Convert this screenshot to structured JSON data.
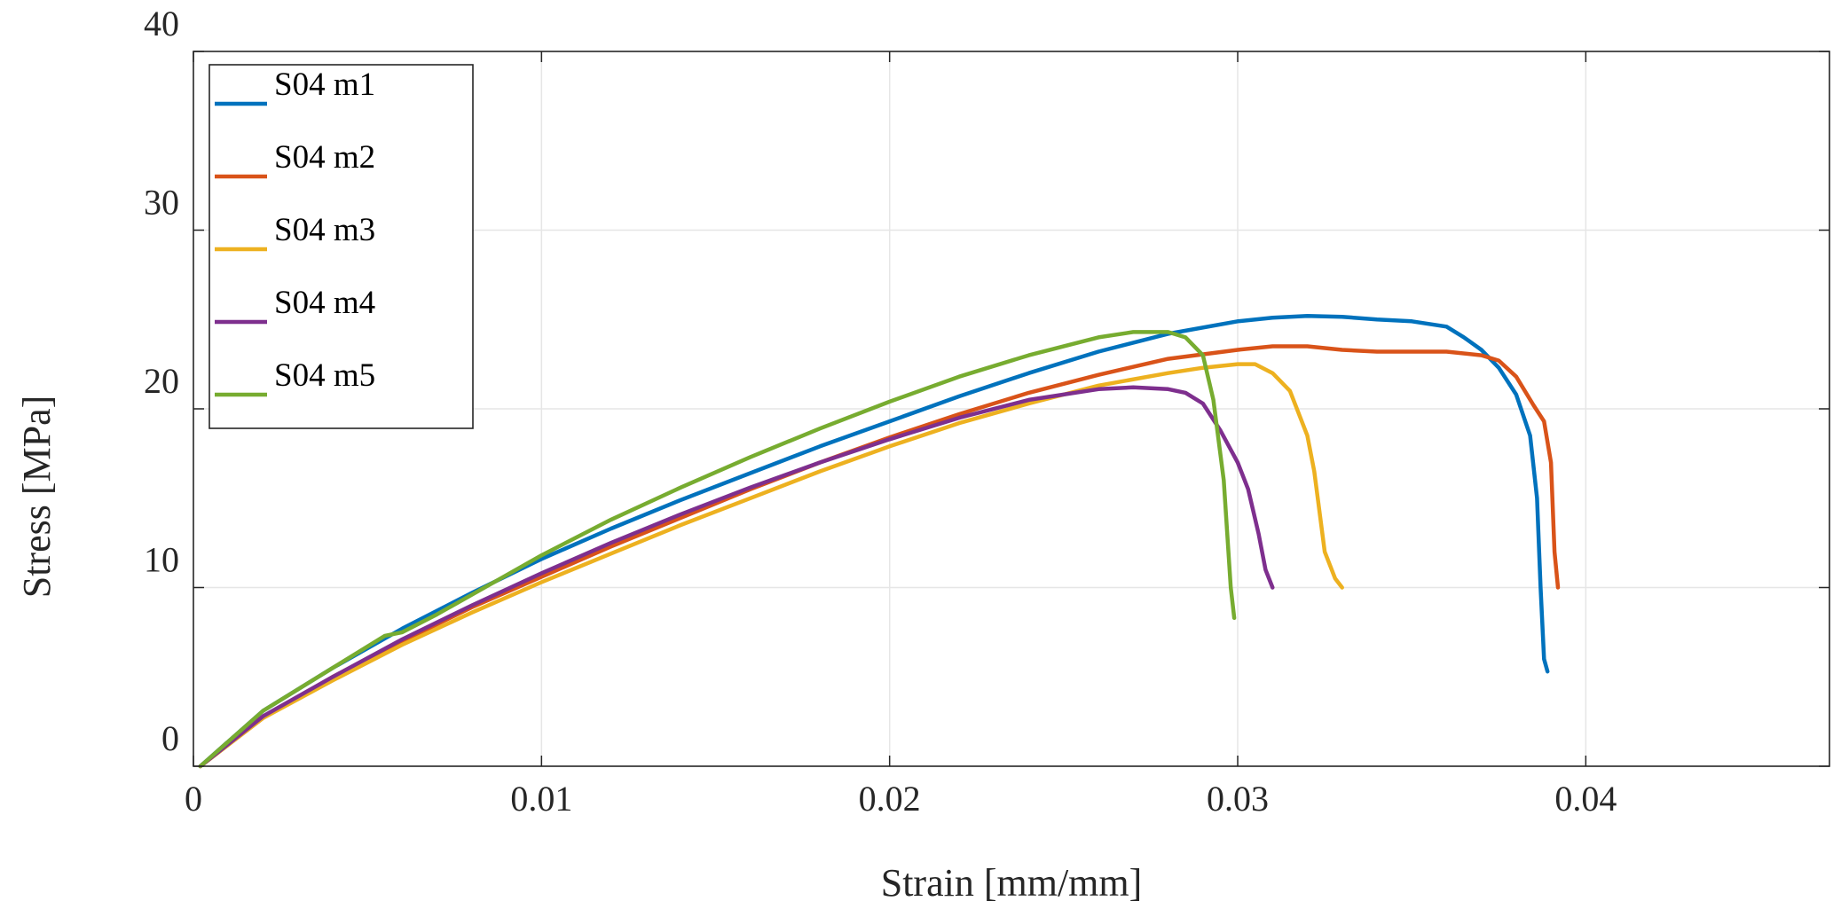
{
  "chart_data": {
    "type": "line",
    "title": "",
    "xlabel": "Strain [mm/mm]",
    "ylabel": "Stress [MPa]",
    "xlim": [
      0,
      0.047
    ],
    "ylim": [
      0,
      40
    ],
    "grid": true,
    "legend_position": "top-left",
    "x_ticks": [
      0,
      0.01,
      0.02,
      0.03,
      0.04
    ],
    "x_tick_labels": [
      "0",
      "0.01",
      "0.02",
      "0.03",
      "0.04"
    ],
    "y_ticks": [
      0,
      10,
      20,
      30,
      40
    ],
    "y_tick_labels": [
      "0",
      "10",
      "20",
      "30",
      "40"
    ],
    "series": [
      {
        "name": "S04 m1",
        "color": "#0072BD",
        "x": [
          0.0002,
          0.002,
          0.004,
          0.006,
          0.008,
          0.01,
          0.012,
          0.014,
          0.016,
          0.018,
          0.02,
          0.022,
          0.024,
          0.026,
          0.028,
          0.03,
          0.031,
          0.032,
          0.033,
          0.034,
          0.035,
          0.036,
          0.0365,
          0.037,
          0.0375,
          0.038,
          0.0384,
          0.0386,
          0.0387,
          0.0388,
          0.0389
        ],
        "y": [
          0,
          3.1,
          5.5,
          7.7,
          9.7,
          11.6,
          13.3,
          14.9,
          16.4,
          17.9,
          19.3,
          20.7,
          22.0,
          23.2,
          24.2,
          24.9,
          25.1,
          25.2,
          25.15,
          25.0,
          24.9,
          24.6,
          24.0,
          23.3,
          22.3,
          20.8,
          18.5,
          15.0,
          10.0,
          6.0,
          5.3
        ]
      },
      {
        "name": "S04 m2",
        "color": "#D95319",
        "x": [
          0.0002,
          0.002,
          0.004,
          0.006,
          0.008,
          0.01,
          0.012,
          0.014,
          0.016,
          0.018,
          0.02,
          0.022,
          0.024,
          0.026,
          0.028,
          0.03,
          0.031,
          0.032,
          0.033,
          0.034,
          0.035,
          0.036,
          0.037,
          0.0375,
          0.038,
          0.0385,
          0.0388,
          0.039,
          0.0391,
          0.0392
        ],
        "y": [
          0,
          2.7,
          5.0,
          7.0,
          8.9,
          10.6,
          12.3,
          13.9,
          15.5,
          17.0,
          18.4,
          19.7,
          20.9,
          21.9,
          22.8,
          23.3,
          23.5,
          23.5,
          23.3,
          23.2,
          23.2,
          23.2,
          23.0,
          22.7,
          21.8,
          20.2,
          19.3,
          17.0,
          12.0,
          10.0
        ]
      },
      {
        "name": "S04 m3",
        "color": "#EDB120",
        "x": [
          0.0002,
          0.002,
          0.004,
          0.006,
          0.008,
          0.01,
          0.012,
          0.014,
          0.016,
          0.018,
          0.02,
          0.022,
          0.024,
          0.026,
          0.028,
          0.029,
          0.03,
          0.0305,
          0.031,
          0.0315,
          0.032,
          0.0322,
          0.0325,
          0.0328,
          0.033
        ],
        "y": [
          0,
          2.7,
          4.8,
          6.8,
          8.6,
          10.3,
          11.9,
          13.5,
          15.0,
          16.5,
          17.9,
          19.2,
          20.3,
          21.3,
          22.0,
          22.3,
          22.5,
          22.5,
          22.0,
          21.0,
          18.5,
          16.5,
          12.0,
          10.5,
          10.0
        ]
      },
      {
        "name": "S04 m4",
        "color": "#7E2F8E",
        "x": [
          0.0002,
          0.002,
          0.004,
          0.006,
          0.008,
          0.01,
          0.012,
          0.014,
          0.016,
          0.018,
          0.02,
          0.022,
          0.024,
          0.026,
          0.027,
          0.028,
          0.0285,
          0.029,
          0.0295,
          0.03,
          0.0303,
          0.0306,
          0.0308,
          0.031
        ],
        "y": [
          0,
          2.8,
          5.0,
          7.1,
          9.0,
          10.8,
          12.5,
          14.1,
          15.6,
          17.0,
          18.3,
          19.5,
          20.5,
          21.1,
          21.2,
          21.1,
          20.9,
          20.3,
          18.8,
          17.0,
          15.5,
          13.0,
          11.0,
          10.0
        ]
      },
      {
        "name": "S04 m5",
        "color": "#77AC30",
        "x": [
          0.0002,
          0.002,
          0.004,
          0.0055,
          0.006,
          0.007,
          0.008,
          0.01,
          0.012,
          0.014,
          0.016,
          0.018,
          0.02,
          0.022,
          0.024,
          0.026,
          0.027,
          0.028,
          0.0285,
          0.029,
          0.0293,
          0.0296,
          0.0298,
          0.0299
        ],
        "y": [
          0,
          3.1,
          5.5,
          7.3,
          7.5,
          8.5,
          9.6,
          11.8,
          13.8,
          15.6,
          17.3,
          18.9,
          20.4,
          21.8,
          23.0,
          24.0,
          24.3,
          24.3,
          24.0,
          23.0,
          20.5,
          16.0,
          10.0,
          8.3
        ]
      }
    ]
  }
}
